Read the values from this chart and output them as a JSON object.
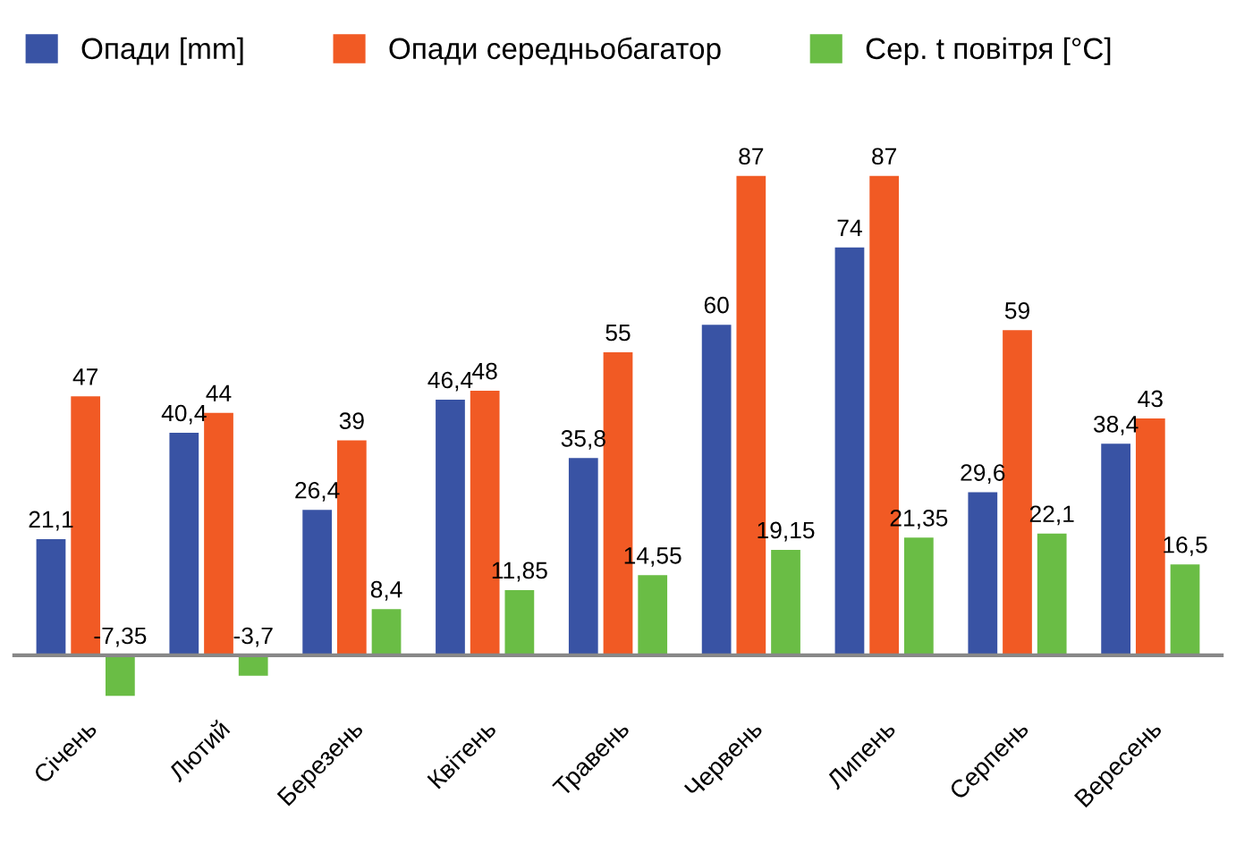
{
  "chart_data": {
    "type": "bar",
    "categories": [
      "Січень",
      "Лютий",
      "Березень",
      "Квітень",
      "Травень",
      "Червень",
      "Липень",
      "Серпень",
      "Вересень"
    ],
    "series": [
      {
        "name": "Опади [mm]",
        "color": "#3953a4",
        "values": [
          21.1,
          40.4,
          26.4,
          46.4,
          35.8,
          60,
          74,
          29.6,
          38.4
        ],
        "value_labels": [
          "21,1",
          "40,4",
          "26,4",
          "46,4",
          "35,8",
          "60",
          "74",
          "29,6",
          "38,4"
        ]
      },
      {
        "name": "Опади середньобагатор",
        "color": "#f15a24",
        "values": [
          47,
          44,
          39,
          48,
          55,
          87,
          87,
          59,
          43
        ],
        "value_labels": [
          "47",
          "44",
          "39",
          "48",
          "55",
          "87",
          "87",
          "59",
          "43"
        ]
      },
      {
        "name": "Сер. t повітря [°C]",
        "color": "#6abd45",
        "values": [
          -7.35,
          -3.7,
          8.4,
          11.85,
          14.55,
          19.15,
          21.35,
          22.1,
          16.5
        ],
        "value_labels": [
          "-7,35",
          "-3,7",
          "8,4",
          "11,85",
          "14,55",
          "19,15",
          "21,35",
          "22,1",
          "16,5"
        ]
      }
    ],
    "legend": "top left",
    "grid": false
  }
}
